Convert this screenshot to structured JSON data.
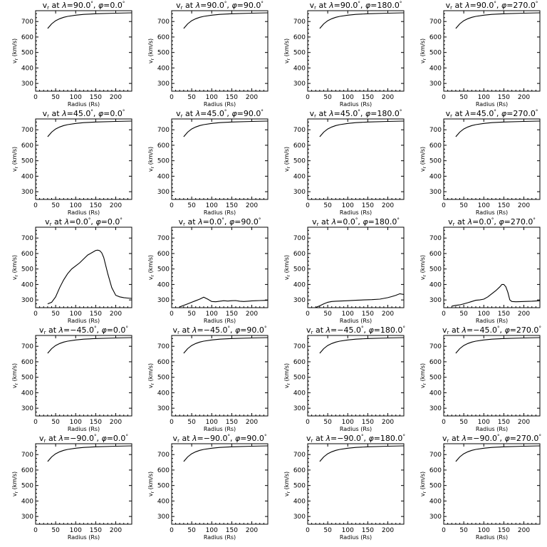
{
  "chart_data": [
    {
      "type": "line",
      "title": "v_r at λ=90.0°, φ=0.0°",
      "title_parts": {
        "var": "v",
        "sub": "r",
        "lam": "90.0",
        "phi": "0.0"
      },
      "xlabel": "Radius (Rs)",
      "ylabel": "v_r (km/s)",
      "xlim": [
        0,
        240
      ],
      "ylim": [
        250,
        770
      ],
      "xticks": [
        0,
        50,
        100,
        150,
        200
      ],
      "yticks": [
        300,
        400,
        500,
        600,
        700
      ],
      "x": [
        30,
        40,
        50,
        60,
        70,
        80,
        100,
        120,
        150,
        200,
        240
      ],
      "y": [
        655,
        685,
        705,
        718,
        727,
        733,
        741,
        746,
        750,
        754,
        756
      ]
    },
    {
      "type": "line",
      "title": "v_r at λ=90.0°, φ=90.0°",
      "title_parts": {
        "var": "v",
        "sub": "r",
        "lam": "90.0",
        "phi": "90.0"
      },
      "xlabel": "Radius (Rs)",
      "ylabel": "v_r (km/s)",
      "xlim": [
        0,
        240
      ],
      "ylim": [
        250,
        770
      ],
      "xticks": [
        0,
        50,
        100,
        150,
        200
      ],
      "yticks": [
        300,
        400,
        500,
        600,
        700
      ],
      "x": [
        30,
        40,
        50,
        60,
        70,
        80,
        100,
        120,
        150,
        200,
        240
      ],
      "y": [
        655,
        685,
        705,
        718,
        727,
        733,
        741,
        746,
        750,
        754,
        756
      ]
    },
    {
      "type": "line",
      "title": "v_r at λ=90.0°, φ=180.0°",
      "title_parts": {
        "var": "v",
        "sub": "r",
        "lam": "90.0",
        "phi": "180.0"
      },
      "xlabel": "Radius (Rs)",
      "ylabel": "v_r (km/s)",
      "xlim": [
        0,
        240
      ],
      "ylim": [
        250,
        770
      ],
      "xticks": [
        0,
        50,
        100,
        150,
        200
      ],
      "yticks": [
        300,
        400,
        500,
        600,
        700
      ],
      "x": [
        30,
        40,
        50,
        60,
        70,
        80,
        100,
        120,
        150,
        200,
        240
      ],
      "y": [
        655,
        685,
        705,
        718,
        727,
        733,
        741,
        746,
        750,
        754,
        756
      ]
    },
    {
      "type": "line",
      "title": "v_r at λ=90.0°, φ=270.0°",
      "title_parts": {
        "var": "v",
        "sub": "r",
        "lam": "90.0",
        "phi": "270.0"
      },
      "xlabel": "Radius (Rs)",
      "ylabel": "v_r (km/s)",
      "xlim": [
        0,
        240
      ],
      "ylim": [
        250,
        770
      ],
      "xticks": [
        0,
        50,
        100,
        150,
        200
      ],
      "yticks": [
        300,
        400,
        500,
        600,
        700
      ],
      "x": [
        30,
        40,
        50,
        60,
        70,
        80,
        100,
        120,
        150,
        200,
        240
      ],
      "y": [
        655,
        685,
        705,
        718,
        727,
        733,
        741,
        746,
        750,
        754,
        756
      ]
    },
    {
      "type": "line",
      "title": "v_r at λ=45.0°, φ=0.0°",
      "title_parts": {
        "var": "v",
        "sub": "r",
        "lam": "45.0",
        "phi": "0.0"
      },
      "xlabel": "Radius (Rs)",
      "ylabel": "v_r (km/s)",
      "xlim": [
        0,
        240
      ],
      "ylim": [
        250,
        770
      ],
      "xticks": [
        0,
        50,
        100,
        150,
        200
      ],
      "yticks": [
        300,
        400,
        500,
        600,
        700
      ],
      "x": [
        30,
        40,
        50,
        60,
        70,
        80,
        100,
        120,
        150,
        200,
        240
      ],
      "y": [
        655,
        685,
        705,
        718,
        727,
        733,
        741,
        746,
        750,
        754,
        756
      ]
    },
    {
      "type": "line",
      "title": "v_r at λ=45.0°, φ=90.0°",
      "title_parts": {
        "var": "v",
        "sub": "r",
        "lam": "45.0",
        "phi": "90.0"
      },
      "xlabel": "Radius (Rs)",
      "ylabel": "v_r (km/s)",
      "xlim": [
        0,
        240
      ],
      "ylim": [
        250,
        770
      ],
      "xticks": [
        0,
        50,
        100,
        150,
        200
      ],
      "yticks": [
        300,
        400,
        500,
        600,
        700
      ],
      "x": [
        30,
        40,
        50,
        60,
        70,
        80,
        100,
        120,
        150,
        200,
        240
      ],
      "y": [
        655,
        685,
        705,
        718,
        727,
        733,
        741,
        746,
        750,
        754,
        756
      ]
    },
    {
      "type": "line",
      "title": "v_r at λ=45.0°, φ=180.0°",
      "title_parts": {
        "var": "v",
        "sub": "r",
        "lam": "45.0",
        "phi": "180.0"
      },
      "xlabel": "Radius (Rs)",
      "ylabel": "v_r (km/s)",
      "xlim": [
        0,
        240
      ],
      "ylim": [
        250,
        770
      ],
      "xticks": [
        0,
        50,
        100,
        150,
        200
      ],
      "yticks": [
        300,
        400,
        500,
        600,
        700
      ],
      "x": [
        30,
        40,
        50,
        60,
        70,
        80,
        100,
        120,
        150,
        200,
        240
      ],
      "y": [
        655,
        685,
        705,
        718,
        727,
        733,
        741,
        746,
        750,
        754,
        756
      ]
    },
    {
      "type": "line",
      "title": "v_r at λ=45.0°, φ=270.0°",
      "title_parts": {
        "var": "v",
        "sub": "r",
        "lam": "45.0",
        "phi": "270.0"
      },
      "xlabel": "Radius (Rs)",
      "ylabel": "v_r (km/s)",
      "xlim": [
        0,
        240
      ],
      "ylim": [
        250,
        770
      ],
      "xticks": [
        0,
        50,
        100,
        150,
        200
      ],
      "yticks": [
        300,
        400,
        500,
        600,
        700
      ],
      "x": [
        30,
        40,
        50,
        60,
        70,
        80,
        100,
        120,
        150,
        200,
        240
      ],
      "y": [
        655,
        685,
        705,
        718,
        727,
        733,
        741,
        746,
        750,
        754,
        756
      ]
    },
    {
      "type": "line",
      "title": "v_r at λ=0.0°, φ=0.0°",
      "title_parts": {
        "var": "v",
        "sub": "r",
        "lam": "0.0",
        "phi": "0.0"
      },
      "xlabel": "Radius (Rs)",
      "ylabel": "v_r (km/s)",
      "xlim": [
        0,
        240
      ],
      "ylim": [
        250,
        770
      ],
      "xticks": [
        0,
        50,
        100,
        150,
        200
      ],
      "yticks": [
        300,
        400,
        500,
        600,
        700
      ],
      "x": [
        30,
        40,
        50,
        60,
        70,
        80,
        90,
        100,
        110,
        120,
        130,
        140,
        150,
        155,
        160,
        165,
        170,
        180,
        190,
        200,
        210,
        220,
        230,
        240
      ],
      "y": [
        275,
        285,
        320,
        380,
        430,
        470,
        500,
        520,
        540,
        565,
        590,
        605,
        620,
        622,
        618,
        605,
        575,
        470,
        380,
        330,
        320,
        315,
        312,
        310
      ]
    },
    {
      "type": "line",
      "title": "v_r at λ=0.0°, φ=90.0°",
      "title_parts": {
        "var": "v",
        "sub": "r",
        "lam": "0.0",
        "phi": "90.0"
      },
      "xlabel": "Radius (Rs)",
      "ylabel": "v_r (km/s)",
      "xlim": [
        0,
        240
      ],
      "ylim": [
        250,
        770
      ],
      "xticks": [
        0,
        50,
        100,
        150,
        200
      ],
      "yticks": [
        300,
        400,
        500,
        600,
        700
      ],
      "x": [
        20,
        30,
        40,
        50,
        60,
        70,
        80,
        90,
        100,
        110,
        120,
        130,
        140,
        150,
        160,
        170,
        180,
        190,
        200,
        210,
        220,
        230,
        240
      ],
      "y": [
        255,
        265,
        275,
        285,
        295,
        305,
        318,
        305,
        290,
        288,
        292,
        295,
        293,
        295,
        296,
        292,
        290,
        292,
        294,
        295,
        296,
        297,
        298
      ]
    },
    {
      "type": "line",
      "title": "v_r at λ=0.0°, φ=180.0°",
      "title_parts": {
        "var": "v",
        "sub": "r",
        "lam": "0.0",
        "phi": "180.0"
      },
      "xlabel": "Radius (Rs)",
      "ylabel": "v_r (km/s)",
      "xlim": [
        0,
        240
      ],
      "ylim": [
        250,
        770
      ],
      "xticks": [
        0,
        50,
        100,
        150,
        200
      ],
      "yticks": [
        300,
        400,
        500,
        600,
        700
      ],
      "x": [
        20,
        30,
        40,
        50,
        60,
        70,
        80,
        100,
        120,
        140,
        160,
        180,
        200,
        210,
        220,
        230,
        240
      ],
      "y": [
        252,
        262,
        275,
        285,
        290,
        292,
        293,
        295,
        298,
        300,
        302,
        305,
        315,
        322,
        330,
        340,
        335
      ]
    },
    {
      "type": "line",
      "title": "v_r at λ=0.0°, φ=270.0°",
      "title_parts": {
        "var": "v",
        "sub": "r",
        "lam": "0.0",
        "phi": "270.0"
      },
      "xlabel": "Radius (Rs)",
      "ylabel": "v_r (km/s)",
      "xlim": [
        0,
        240
      ],
      "ylim": [
        250,
        770
      ],
      "xticks": [
        0,
        50,
        100,
        150,
        200
      ],
      "yticks": [
        300,
        400,
        500,
        600,
        700
      ],
      "x": [
        20,
        30,
        40,
        50,
        60,
        70,
        80,
        90,
        100,
        110,
        120,
        130,
        140,
        145,
        150,
        155,
        160,
        165,
        170,
        180,
        200,
        220,
        240
      ],
      "y": [
        260,
        265,
        268,
        275,
        282,
        290,
        298,
        300,
        305,
        320,
        340,
        360,
        385,
        400,
        400,
        385,
        350,
        300,
        290,
        288,
        290,
        292,
        295
      ]
    },
    {
      "type": "line",
      "title": "v_r at λ=−45.0°, φ=0.0°",
      "title_parts": {
        "var": "v",
        "sub": "r",
        "lam": "−45.0",
        "phi": "0.0"
      },
      "xlabel": "Radius (Rs)",
      "ylabel": "v_r (km/s)",
      "xlim": [
        0,
        240
      ],
      "ylim": [
        250,
        770
      ],
      "xticks": [
        0,
        50,
        100,
        150,
        200
      ],
      "yticks": [
        300,
        400,
        500,
        600,
        700
      ],
      "x": [
        30,
        40,
        50,
        60,
        70,
        80,
        100,
        120,
        150,
        200,
        240
      ],
      "y": [
        655,
        685,
        705,
        718,
        727,
        733,
        741,
        746,
        750,
        754,
        756
      ]
    },
    {
      "type": "line",
      "title": "v_r at λ=−45.0°, φ=90.0°",
      "title_parts": {
        "var": "v",
        "sub": "r",
        "lam": "−45.0",
        "phi": "90.0"
      },
      "xlabel": "Radius (Rs)",
      "ylabel": "v_r (km/s)",
      "xlim": [
        0,
        240
      ],
      "ylim": [
        250,
        770
      ],
      "xticks": [
        0,
        50,
        100,
        150,
        200
      ],
      "yticks": [
        300,
        400,
        500,
        600,
        700
      ],
      "x": [
        30,
        40,
        50,
        60,
        70,
        80,
        100,
        120,
        150,
        200,
        240
      ],
      "y": [
        655,
        685,
        705,
        718,
        727,
        733,
        741,
        746,
        750,
        754,
        756
      ]
    },
    {
      "type": "line",
      "title": "v_r at λ=−45.0°, φ=180.0°",
      "title_parts": {
        "var": "v",
        "sub": "r",
        "lam": "−45.0",
        "phi": "180.0"
      },
      "xlabel": "Radius (Rs)",
      "ylabel": "v_r (km/s)",
      "xlim": [
        0,
        240
      ],
      "ylim": [
        250,
        770
      ],
      "xticks": [
        0,
        50,
        100,
        150,
        200
      ],
      "yticks": [
        300,
        400,
        500,
        600,
        700
      ],
      "x": [
        30,
        40,
        50,
        60,
        70,
        80,
        100,
        120,
        150,
        200,
        240
      ],
      "y": [
        655,
        685,
        705,
        718,
        727,
        733,
        741,
        746,
        750,
        754,
        756
      ]
    },
    {
      "type": "line",
      "title": "v_r at λ=−45.0°, φ=270.0°",
      "title_parts": {
        "var": "v",
        "sub": "r",
        "lam": "−45.0",
        "phi": "270.0"
      },
      "xlabel": "Radius (Rs)",
      "ylabel": "v_r (km/s)",
      "xlim": [
        0,
        240
      ],
      "ylim": [
        250,
        770
      ],
      "xticks": [
        0,
        50,
        100,
        150,
        200
      ],
      "yticks": [
        300,
        400,
        500,
        600,
        700
      ],
      "x": [
        30,
        40,
        50,
        60,
        70,
        80,
        100,
        120,
        150,
        200,
        240
      ],
      "y": [
        655,
        685,
        705,
        718,
        727,
        733,
        741,
        746,
        750,
        754,
        756
      ]
    },
    {
      "type": "line",
      "title": "v_r at λ=−90.0°, φ=0.0°",
      "title_parts": {
        "var": "v",
        "sub": "r",
        "lam": "−90.0",
        "phi": "0.0"
      },
      "xlabel": "Radius (Rs)",
      "ylabel": "v_r (km/s)",
      "xlim": [
        0,
        240
      ],
      "ylim": [
        250,
        770
      ],
      "xticks": [
        0,
        50,
        100,
        150,
        200
      ],
      "yticks": [
        300,
        400,
        500,
        600,
        700
      ],
      "x": [
        30,
        40,
        50,
        60,
        70,
        80,
        100,
        120,
        150,
        200,
        240
      ],
      "y": [
        655,
        685,
        705,
        718,
        727,
        733,
        741,
        746,
        750,
        754,
        756
      ]
    },
    {
      "type": "line",
      "title": "v_r at λ=−90.0°, φ=90.0°",
      "title_parts": {
        "var": "v",
        "sub": "r",
        "lam": "−90.0",
        "phi": "90.0"
      },
      "xlabel": "Radius (Rs)",
      "ylabel": "v_r (km/s)",
      "xlim": [
        0,
        240
      ],
      "ylim": [
        250,
        770
      ],
      "xticks": [
        0,
        50,
        100,
        150,
        200
      ],
      "yticks": [
        300,
        400,
        500,
        600,
        700
      ],
      "x": [
        30,
        40,
        50,
        60,
        70,
        80,
        100,
        120,
        150,
        200,
        240
      ],
      "y": [
        655,
        685,
        705,
        718,
        727,
        733,
        741,
        746,
        750,
        754,
        756
      ]
    },
    {
      "type": "line",
      "title": "v_r at λ=−90.0°, φ=180.0°",
      "title_parts": {
        "var": "v",
        "sub": "r",
        "lam": "−90.0",
        "phi": "180.0"
      },
      "xlabel": "Radius (Rs)",
      "ylabel": "v_r (km/s)",
      "xlim": [
        0,
        240
      ],
      "ylim": [
        250,
        770
      ],
      "xticks": [
        0,
        50,
        100,
        150,
        200
      ],
      "yticks": [
        300,
        400,
        500,
        600,
        700
      ],
      "x": [
        30,
        40,
        50,
        60,
        70,
        80,
        100,
        120,
        150,
        200,
        240
      ],
      "y": [
        655,
        685,
        705,
        718,
        727,
        733,
        741,
        746,
        750,
        754,
        756
      ]
    },
    {
      "type": "line",
      "title": "v_r at λ=−90.0°, φ=270.0°",
      "title_parts": {
        "var": "v",
        "sub": "r",
        "lam": "−90.0",
        "phi": "270.0"
      },
      "xlabel": "Radius (Rs)",
      "ylabel": "v_r (km/s)",
      "xlim": [
        0,
        240
      ],
      "ylim": [
        250,
        770
      ],
      "xticks": [
        0,
        50,
        100,
        150,
        200
      ],
      "yticks": [
        300,
        400,
        500,
        600,
        700
      ],
      "x": [
        30,
        40,
        50,
        60,
        70,
        80,
        100,
        120,
        150,
        200,
        240
      ],
      "y": [
        655,
        685,
        705,
        718,
        727,
        733,
        741,
        746,
        750,
        754,
        756
      ]
    }
  ]
}
